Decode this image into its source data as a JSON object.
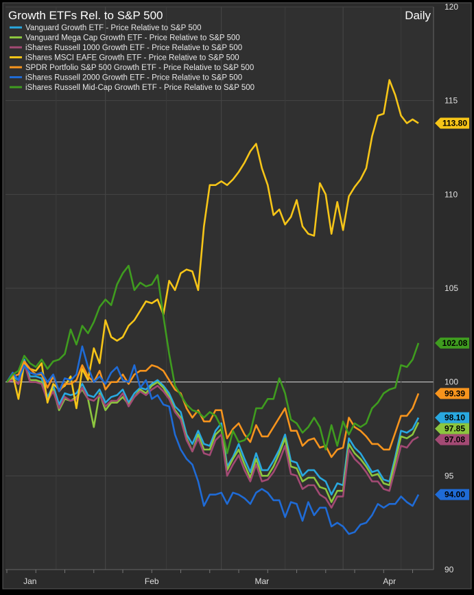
{
  "chart_data": {
    "type": "line",
    "title": "Growth ETFs Rel. to S&P 500",
    "period_label": "Daily",
    "xlabel": "",
    "ylabel": "",
    "ylim": [
      90,
      120
    ],
    "y_ticks": [
      "120",
      "115",
      "110",
      "105",
      "100",
      "95",
      "90"
    ],
    "x_tick_labels": [
      "Jan",
      "Feb",
      "Mar",
      "Apr"
    ],
    "baseline": 100,
    "grid": true,
    "legend_position": "top-left",
    "x_count": 72,
    "series": [
      {
        "name": "Vanguard Growth ETF - Price Relative to S&P 500",
        "color": "#29a8e0",
        "last_label": "98.10",
        "values": [
          100,
          100.3,
          100.1,
          101.2,
          100.3,
          100.3,
          100.2,
          99.2,
          99.8,
          98.8,
          99.4,
          99.3,
          99.4,
          99.9,
          99.3,
          99.2,
          99.6,
          98.9,
          99.2,
          99.3,
          99.6,
          98.9,
          99.4,
          99.7,
          99.6,
          99.9,
          100.1,
          99.8,
          99.4,
          98.7,
          98.4,
          97.2,
          96.7,
          97.4,
          96.7,
          96.6,
          97.4,
          97.8,
          95.5,
          96.0,
          96.7,
          95.9,
          95.2,
          96.2,
          95.3,
          95.3,
          95.8,
          96.4,
          97.2,
          95.8,
          95.7,
          95.0,
          95.3,
          95.3,
          94.9,
          94.7,
          94.0,
          94.6,
          94.5,
          97.0,
          96.5,
          96.2,
          95.7,
          95.2,
          95.3,
          94.8,
          94.7,
          96.0,
          97.4,
          97.3,
          97.5,
          98.1
        ]
      },
      {
        "name": "Vanguard Mega Cap Growth ETF - Price Relative to S&P 500",
        "color": "#8cc63f",
        "last_label": "97.85",
        "values": [
          100,
          100.2,
          99.9,
          101.0,
          100.1,
          100.1,
          100.0,
          99.0,
          99.6,
          98.5,
          99.1,
          99.0,
          99.2,
          99.6,
          99.1,
          97.6,
          99.4,
          98.5,
          98.9,
          98.9,
          99.2,
          98.8,
          99.2,
          99.6,
          99.4,
          99.8,
          100.0,
          99.7,
          99.2,
          98.5,
          98.1,
          97.0,
          96.3,
          97.2,
          96.4,
          96.4,
          97.2,
          97.5,
          95.3,
          95.9,
          96.4,
          95.6,
          94.9,
          95.9,
          95.0,
          95.0,
          95.5,
          96.2,
          97.0,
          95.5,
          95.4,
          94.7,
          94.9,
          94.9,
          94.4,
          94.3,
          93.6,
          94.2,
          94.2,
          96.7,
          96.2,
          95.9,
          95.5,
          95.0,
          95.1,
          94.6,
          94.5,
          95.8,
          97.1,
          97.0,
          97.2,
          97.85
        ]
      },
      {
        "name": "iShares Russell 1000 Growth ETF - Price Relative to S&P 500",
        "color": "#a34a74",
        "last_label": "97.08",
        "values": [
          100,
          100.1,
          99.9,
          101.0,
          100.0,
          100.0,
          99.9,
          99.0,
          99.5,
          98.6,
          99.2,
          99.0,
          99.1,
          99.7,
          99.1,
          99.0,
          99.3,
          98.7,
          99.0,
          99.0,
          99.4,
          98.7,
          99.2,
          99.5,
          99.3,
          99.6,
          99.8,
          99.5,
          99.1,
          98.4,
          98.0,
          96.9,
          96.3,
          97.0,
          96.2,
          96.1,
          96.9,
          97.2,
          95.0,
          95.6,
          96.1,
          95.3,
          94.7,
          95.6,
          94.7,
          94.8,
          95.2,
          95.8,
          96.6,
          95.1,
          95.0,
          94.3,
          94.5,
          94.5,
          94.0,
          93.8,
          93.3,
          93.9,
          93.9,
          96.4,
          95.9,
          95.6,
          95.2,
          94.7,
          94.7,
          94.3,
          94.2,
          95.4,
          96.6,
          96.5,
          96.9,
          97.08
        ]
      },
      {
        "name": "iShares MSCI EAFE Growth ETF - Price Relative to S&P 500",
        "color": "#f6c518",
        "last_label": "113.80",
        "values": [
          100,
          100.4,
          99.1,
          101.0,
          100.7,
          100.6,
          101.0,
          98.9,
          99.9,
          99.6,
          99.8,
          100.3,
          98.6,
          100.7,
          100.1,
          101.8,
          101.0,
          103.3,
          102.4,
          102.2,
          102.4,
          103.0,
          103.3,
          103.8,
          104.3,
          104.2,
          104.4,
          103.6,
          105.4,
          104.9,
          105.8,
          106.0,
          105.9,
          104.9,
          108.3,
          110.5,
          110.5,
          110.7,
          110.5,
          110.8,
          111.2,
          111.7,
          112.3,
          112.7,
          111.4,
          110.5,
          108.9,
          109.2,
          108.4,
          108.8,
          109.7,
          108.3,
          107.9,
          107.8,
          110.6,
          110.0,
          107.9,
          109.6,
          108.1,
          109.9,
          110.4,
          110.8,
          111.4,
          113.1,
          114.2,
          114.3,
          116.1,
          115.3,
          114.2,
          113.8,
          114.0,
          113.8
        ]
      },
      {
        "name": "SPDR Portfolio S&P 500 Growth ETF - Price Relative to S&P 500",
        "color": "#f7941d",
        "last_label": "99.39",
        "values": [
          100,
          100.3,
          100.4,
          101.1,
          100.7,
          100.4,
          100.4,
          99.7,
          100.3,
          99.5,
          99.9,
          99.9,
          100.1,
          100.9,
          100.3,
          100.0,
          100.6,
          99.6,
          100.0,
          100.0,
          100.4,
          99.9,
          100.4,
          100.6,
          100.6,
          100.9,
          100.8,
          100.6,
          100.1,
          99.6,
          99.4,
          98.6,
          98.1,
          98.5,
          97.9,
          97.9,
          98.5,
          98.5,
          97.0,
          97.5,
          97.8,
          97.2,
          96.8,
          97.7,
          97.1,
          97.1,
          97.6,
          98.1,
          98.6,
          97.4,
          97.4,
          96.6,
          96.9,
          97.0,
          96.5,
          96.6,
          96.0,
          96.4,
          96.5,
          98.1,
          97.6,
          97.4,
          97.1,
          96.7,
          96.7,
          96.4,
          96.4,
          97.3,
          98.2,
          98.2,
          98.6,
          99.39
        ]
      },
      {
        "name": "iShares Russell 2000 Growth ETF - Price Relative to S&P 500",
        "color": "#1f6bd6",
        "last_label": "94.00",
        "values": [
          100,
          100.5,
          100.1,
          100.9,
          100.5,
          100.4,
          100.5,
          100.0,
          100.4,
          99.5,
          100.2,
          100.1,
          100.4,
          101.9,
          100.8,
          100.0,
          100.3,
          99.9,
          100.5,
          100.8,
          100.1,
          100.0,
          100.9,
          99.7,
          100.1,
          99.1,
          99.3,
          98.8,
          98.7,
          97.2,
          96.4,
          95.9,
          95.6,
          94.7,
          93.4,
          94.0,
          94.0,
          94.1,
          93.5,
          94.1,
          94.0,
          93.8,
          93.5,
          94.1,
          94.3,
          94.1,
          93.7,
          93.7,
          92.8,
          93.6,
          93.5,
          92.6,
          93.6,
          92.9,
          93.3,
          93.3,
          92.3,
          92.5,
          92.3,
          91.9,
          92.0,
          92.4,
          92.5,
          92.9,
          93.5,
          93.3,
          93.5,
          93.5,
          93.9,
          93.6,
          93.4,
          94.0
        ]
      },
      {
        "name": "iShares Russell Mid-Cap Growth ETF - Price Relative to S&P 500",
        "color": "#3f9c1f",
        "last_label": "102.08",
        "values": [
          100,
          100.4,
          100.6,
          101.4,
          101.0,
          100.8,
          101.2,
          100.7,
          101.1,
          101.2,
          101.5,
          102.8,
          102.0,
          103.0,
          102.6,
          103.2,
          104.0,
          104.4,
          104.1,
          105.2,
          105.8,
          106.2,
          104.9,
          105.3,
          105.1,
          105.2,
          105.7,
          103.5,
          101.5,
          99.8,
          99.3,
          98.8,
          98.5,
          98.4,
          98.1,
          98.4,
          98.2,
          97.6,
          96.2,
          97.4,
          96.8,
          96.9,
          97.3,
          98.6,
          98.6,
          99.1,
          99.1,
          100.2,
          99.4,
          98.0,
          97.8,
          97.3,
          97.6,
          98.1,
          97.6,
          96.4,
          97.7,
          96.6,
          97.9,
          97.2,
          97.8,
          97.6,
          97.8,
          98.6,
          98.9,
          99.4,
          99.6,
          99.7,
          100.9,
          100.8,
          101.2,
          102.08
        ]
      }
    ]
  }
}
